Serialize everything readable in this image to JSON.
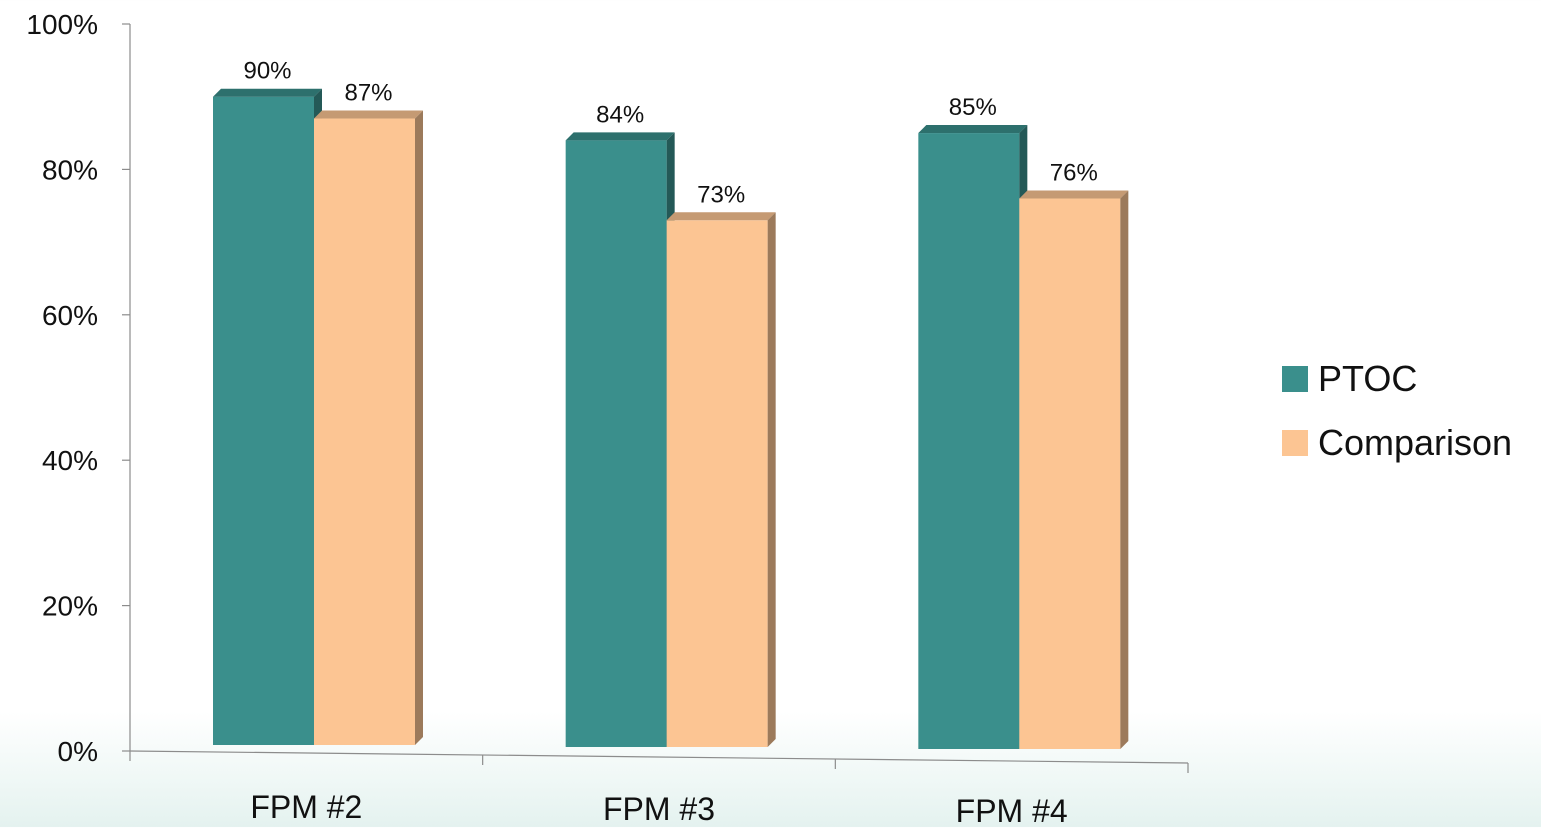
{
  "chart_data": {
    "type": "bar",
    "categories": [
      "FPM #2",
      "FPM #3",
      "FPM #4"
    ],
    "series": [
      {
        "name": "PTOC",
        "values": [
          90,
          84,
          85
        ],
        "labels": [
          "90%",
          "84%",
          "85%"
        ],
        "color": "#3a8f8c"
      },
      {
        "name": "Comparison",
        "values": [
          87,
          73,
          76
        ],
        "labels": [
          "87%",
          "73%",
          "76%"
        ],
        "color": "#fcc593"
      }
    ],
    "title": "",
    "xlabel": "",
    "ylabel": "",
    "ylim": [
      0,
      100
    ],
    "yticks": [
      0,
      20,
      40,
      60,
      80,
      100
    ],
    "ytick_labels": [
      "0%",
      "20%",
      "40%",
      "60%",
      "80%",
      "100%"
    ],
    "grid": false,
    "legend": "right",
    "style": "3d-bar"
  }
}
